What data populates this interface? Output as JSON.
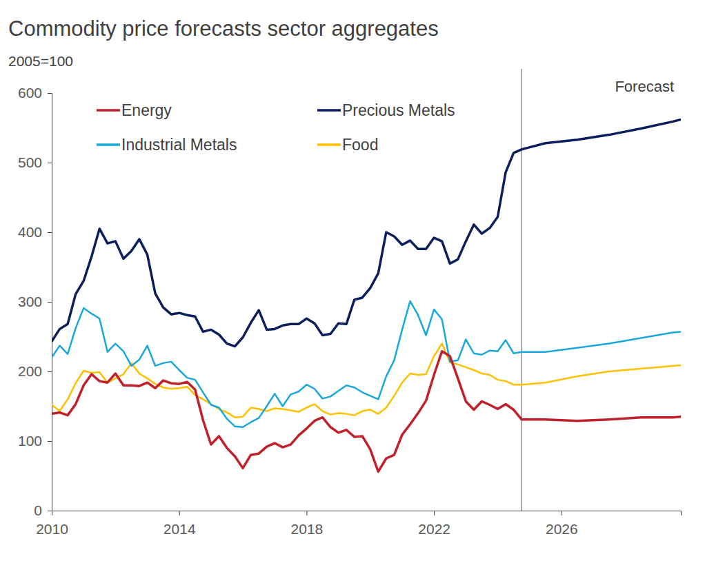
{
  "chart_data": {
    "type": "line",
    "title": "Commodity price forecasts sector aggregates",
    "subtitle": "2005=100",
    "legend": "top-left",
    "grid": false,
    "xlim": [
      2010,
      2029.75
    ],
    "xticks": [
      2010,
      2014,
      2018,
      2022,
      2026
    ],
    "ylim": [
      0,
      600
    ],
    "yticks": [
      0,
      100,
      200,
      300,
      400,
      500,
      600
    ],
    "annotations": [
      {
        "text": "Forecast",
        "x": 2024.75
      }
    ],
    "x": [
      2010,
      2010.25,
      2010.5,
      2010.75,
      2011,
      2011.25,
      2011.5,
      2011.75,
      2012,
      2012.25,
      2012.5,
      2012.75,
      2013,
      2013.25,
      2013.5,
      2013.75,
      2014,
      2014.25,
      2014.5,
      2014.75,
      2015,
      2015.25,
      2015.5,
      2015.75,
      2016,
      2016.25,
      2016.5,
      2016.75,
      2017,
      2017.25,
      2017.5,
      2017.75,
      2018,
      2018.25,
      2018.5,
      2018.75,
      2019,
      2019.25,
      2019.5,
      2019.75,
      2020,
      2020.25,
      2020.5,
      2020.75,
      2021,
      2021.25,
      2021.5,
      2021.75,
      2022,
      2022.25,
      2022.5,
      2022.75,
      2023,
      2023.25,
      2023.5,
      2023.75,
      2024,
      2024.25,
      2024.5,
      2024.75,
      2025.5,
      2026.5,
      2027.5,
      2028.5,
      2029.5,
      2029.75
    ],
    "series": [
      {
        "name": "Energy",
        "color": "#c0202a",
        "values": [
          139,
          141,
          137,
          153,
          180,
          196,
          186,
          184,
          197,
          180,
          180,
          179,
          184,
          176,
          187,
          183,
          182,
          185,
          174,
          130,
          95,
          107,
          90,
          78,
          61,
          80,
          82,
          92,
          97,
          91,
          95,
          108,
          118,
          129,
          134,
          120,
          112,
          116,
          106,
          107,
          88,
          56,
          75,
          80,
          109,
          124,
          140,
          158,
          195,
          229,
          222,
          190,
          157,
          145,
          157,
          152,
          146,
          153,
          145,
          131,
          131,
          129,
          131,
          134,
          134,
          135
        ]
      },
      {
        "name": "Precious Metals",
        "color": "#0b1f5c",
        "values": [
          243,
          261,
          268,
          311,
          330,
          365,
          405,
          384,
          387,
          362,
          373,
          390,
          368,
          312,
          292,
          282,
          284,
          281,
          279,
          257,
          260,
          253,
          240,
          236,
          249,
          270,
          288,
          260,
          261,
          266,
          268,
          268,
          276,
          269,
          252,
          254,
          269,
          268,
          303,
          306,
          320,
          341,
          400,
          394,
          382,
          388,
          376,
          376,
          392,
          387,
          355,
          361,
          387,
          411,
          398,
          406,
          422,
          486,
          514,
          519,
          528,
          533,
          540,
          549,
          559,
          562
        ]
      },
      {
        "name": "Industrial Metals",
        "color": "#1aa8dc",
        "values": [
          220,
          237,
          225,
          262,
          291,
          283,
          276,
          228,
          240,
          229,
          208,
          217,
          237,
          208,
          212,
          214,
          202,
          191,
          188,
          170,
          152,
          148,
          132,
          121,
          120,
          127,
          133,
          150,
          168,
          150,
          167,
          171,
          181,
          175,
          161,
          164,
          172,
          180,
          177,
          170,
          165,
          160,
          193,
          216,
          260,
          301,
          281,
          252,
          289,
          275,
          214,
          216,
          246,
          226,
          224,
          230,
          229,
          245,
          226,
          228,
          228,
          234,
          240,
          248,
          256,
          257
        ]
      },
      {
        "name": "Food",
        "color": "#ffc000",
        "values": [
          152,
          143,
          160,
          183,
          201,
          198,
          199,
          184,
          190,
          196,
          212,
          197,
          190,
          182,
          177,
          175,
          176,
          178,
          166,
          160,
          153,
          146,
          141,
          134,
          135,
          148,
          146,
          143,
          147,
          146,
          144,
          142,
          148,
          153,
          143,
          138,
          140,
          139,
          137,
          143,
          145,
          139,
          148,
          165,
          184,
          197,
          195,
          196,
          222,
          240,
          213,
          210,
          206,
          202,
          197,
          195,
          188,
          186,
          181,
          181,
          184,
          193,
          200,
          204,
          208,
          209
        ]
      }
    ]
  }
}
